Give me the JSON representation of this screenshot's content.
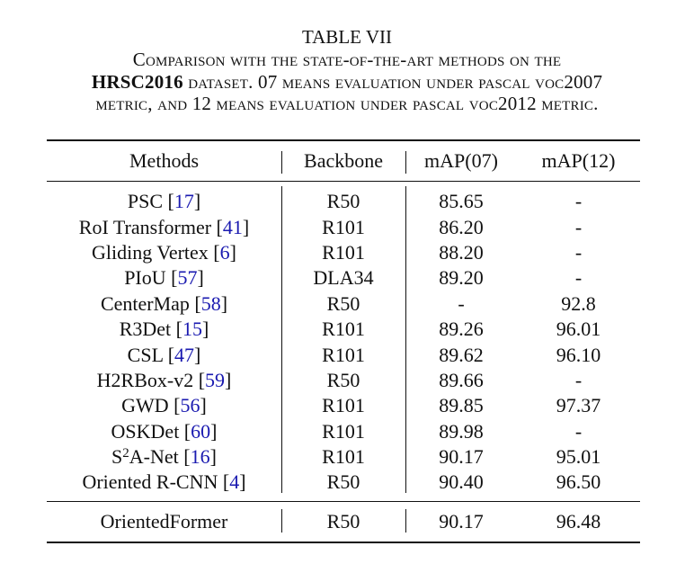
{
  "caption": {
    "label": "TABLE VII",
    "lines": [
      [
        {
          "text": "Comparison with the state-of-the-art methods on the"
        }
      ],
      [
        {
          "text": "HRSC2016",
          "bold": true
        },
        {
          "text": " dataset. 07 means evaluation under pascal voc2007"
        }
      ],
      [
        {
          "text": "metric, and 12 means evaluation under pascal voc2012 metric."
        }
      ]
    ]
  },
  "table": {
    "header": [
      "Methods",
      "Backbone",
      "mAP(07)",
      "mAP(12)"
    ],
    "rows": [
      {
        "method": [
          {
            "text": "PSC ["
          },
          {
            "text": "17",
            "cite": true
          },
          {
            "text": "]"
          }
        ],
        "cells": [
          "R50",
          "85.65",
          "-"
        ]
      },
      {
        "method": [
          {
            "text": "RoI Transformer ["
          },
          {
            "text": "41",
            "cite": true
          },
          {
            "text": "]"
          }
        ],
        "cells": [
          "R101",
          "86.20",
          "-"
        ]
      },
      {
        "method": [
          {
            "text": "Gliding Vertex ["
          },
          {
            "text": "6",
            "cite": true
          },
          {
            "text": "]"
          }
        ],
        "cells": [
          "R101",
          "88.20",
          "-"
        ]
      },
      {
        "method": [
          {
            "text": "PIoU ["
          },
          {
            "text": "57",
            "cite": true
          },
          {
            "text": "]"
          }
        ],
        "cells": [
          "DLA34",
          "89.20",
          "-"
        ]
      },
      {
        "method": [
          {
            "text": "CenterMap ["
          },
          {
            "text": "58",
            "cite": true
          },
          {
            "text": "]"
          }
        ],
        "cells": [
          "R50",
          "-",
          "92.8"
        ]
      },
      {
        "method": [
          {
            "text": "R3Det ["
          },
          {
            "text": "15",
            "cite": true
          },
          {
            "text": "]"
          }
        ],
        "cells": [
          "R101",
          "89.26",
          "96.01"
        ]
      },
      {
        "method": [
          {
            "text": "CSL ["
          },
          {
            "text": "47",
            "cite": true
          },
          {
            "text": "]"
          }
        ],
        "cells": [
          "R101",
          "89.62",
          "96.10"
        ]
      },
      {
        "method": [
          {
            "text": "H2RBox-v2 ["
          },
          {
            "text": "59",
            "cite": true
          },
          {
            "text": "]"
          }
        ],
        "cells": [
          "R50",
          "89.66",
          "-"
        ]
      },
      {
        "method": [
          {
            "text": "GWD ["
          },
          {
            "text": "56",
            "cite": true
          },
          {
            "text": "]"
          }
        ],
        "cells": [
          "R101",
          "89.85",
          "97.37"
        ]
      },
      {
        "method": [
          {
            "text": "OSKDet ["
          },
          {
            "text": "60",
            "cite": true
          },
          {
            "text": "]"
          }
        ],
        "cells": [
          "R101",
          "89.98",
          "-"
        ]
      },
      {
        "method": [
          {
            "text": "S"
          },
          {
            "text": "2",
            "sup": true
          },
          {
            "text": "A-Net ["
          },
          {
            "text": "16",
            "cite": true
          },
          {
            "text": "]"
          }
        ],
        "cells": [
          "R101",
          "90.17",
          "95.01"
        ]
      },
      {
        "method": [
          {
            "text": "Oriented R-CNN ["
          },
          {
            "text": "4",
            "cite": true
          },
          {
            "text": "]"
          }
        ],
        "cells": [
          "R50",
          "90.40",
          "96.50"
        ]
      }
    ],
    "final": {
      "method": [
        {
          "text": "OrientedFormer"
        }
      ],
      "cells": [
        "R50",
        "90.17",
        "96.48"
      ]
    }
  }
}
